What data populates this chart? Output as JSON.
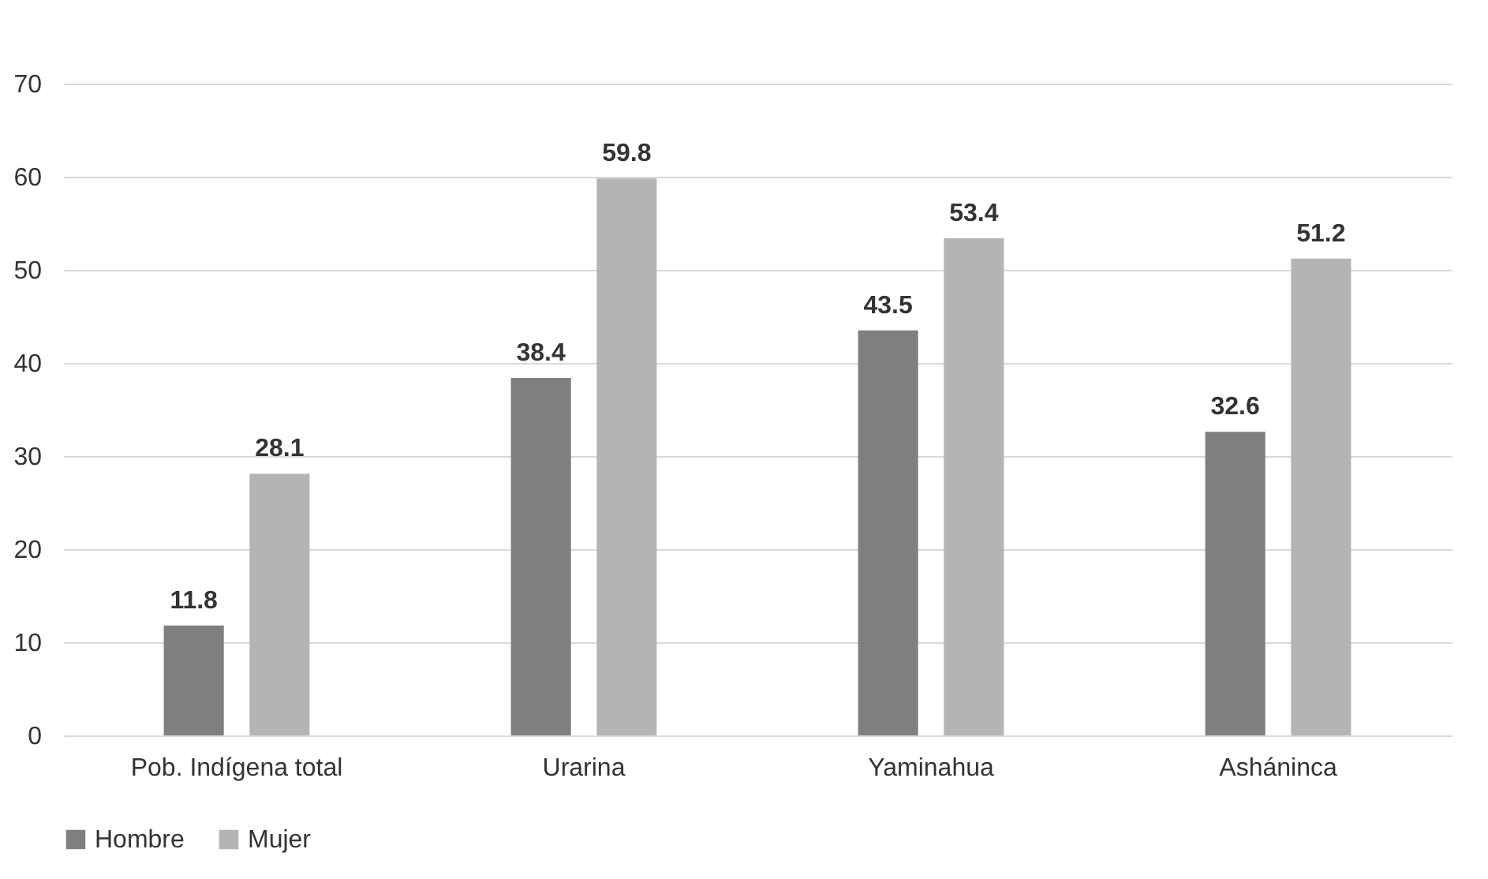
{
  "chart_data": {
    "type": "bar",
    "categories": [
      "Pob. Indígena total",
      "Urarina",
      "Yaminahua",
      "Asháninca"
    ],
    "series": [
      {
        "name": "Hombre",
        "color": "#7f7f7f",
        "values": [
          11.8,
          38.4,
          43.5,
          32.6
        ]
      },
      {
        "name": "Mujer",
        "color": "#b4b4b4",
        "values": [
          28.1,
          59.8,
          53.4,
          51.2
        ]
      }
    ],
    "ylim": [
      0,
      70
    ],
    "yticks": [
      0,
      10,
      20,
      30,
      40,
      50,
      60,
      70
    ],
    "grid": "y",
    "legend": "bottom",
    "data_labels": true
  }
}
